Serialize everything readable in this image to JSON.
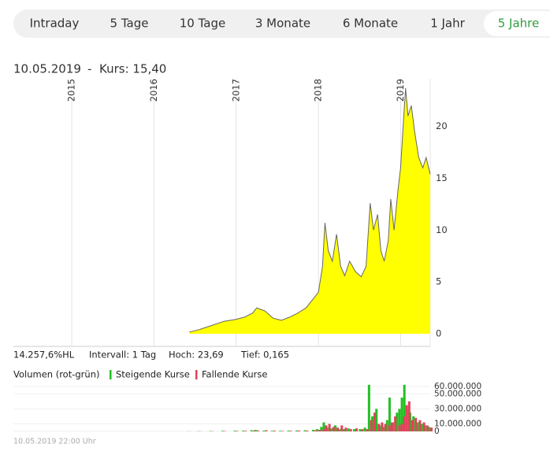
{
  "tabs": [
    "Intraday",
    "5 Tage",
    "10 Tage",
    "3 Monate",
    "6 Monate",
    "1 Jahr",
    "5 Jahre"
  ],
  "active_tab": 6,
  "header": {
    "date": "10.05.2019",
    "separator": "-",
    "price": "Kurs: 15,40"
  },
  "stats": [
    "14.257,6%HL",
    "Intervall: 1 Tag",
    "Hoch: 23,69",
    "Tief: 0,165"
  ],
  "volume_title": "Volumen (rot-grün)",
  "footer": "10.05.2019 22:00 Uhr",
  "chart_data": [
    {
      "type": "area",
      "color": "#ffff00",
      "line_color": "#666666",
      "x": [
        2016.43,
        2016.55,
        2016.7,
        2016.85,
        2017.0,
        2017.1,
        2017.2,
        2017.25,
        2017.35,
        2017.45,
        2017.55,
        2017.65,
        2017.75,
        2017.85,
        2017.95,
        2018.0,
        2018.05,
        2018.08,
        2018.12,
        2018.17,
        2018.22,
        2018.27,
        2018.32,
        2018.38,
        2018.45,
        2018.52,
        2018.58,
        2018.63,
        2018.67,
        2018.72,
        2018.76,
        2018.8,
        2018.85,
        2018.88,
        2018.92,
        2018.97,
        2019.0,
        2019.03,
        2019.06,
        2019.09,
        2019.13,
        2019.17,
        2019.22,
        2019.27,
        2019.31,
        2019.36
      ],
      "values": [
        0.17,
        0.4,
        0.8,
        1.2,
        1.4,
        1.6,
        2.0,
        2.5,
        2.2,
        1.5,
        1.3,
        1.6,
        2.0,
        2.5,
        3.5,
        4.0,
        6.5,
        10.7,
        8.0,
        7.0,
        9.6,
        6.5,
        5.6,
        7.0,
        6.0,
        5.5,
        6.5,
        12.6,
        10.0,
        11.5,
        8.0,
        7.0,
        9.0,
        13.0,
        10.0,
        14.0,
        16.0,
        20.0,
        23.69,
        21.0,
        22.0,
        19.5,
        17.0,
        16.0,
        17.0,
        15.4
      ],
      "xlim": [
        2014.29,
        2019.36
      ],
      "xticks": [
        2015,
        2016,
        2017,
        2018,
        2019
      ],
      "ylim": [
        0,
        24.6
      ],
      "yticks": [
        0,
        5,
        10,
        15,
        20
      ],
      "grid": true
    },
    {
      "type": "bar",
      "x": [
        2016.43,
        2016.55,
        2016.7,
        2016.85,
        2017.0,
        2017.1,
        2017.2,
        2017.25,
        2017.35,
        2017.45,
        2017.55,
        2017.65,
        2017.75,
        2017.85,
        2017.95,
        2018.0,
        2018.05,
        2018.08,
        2018.12,
        2018.17,
        2018.22,
        2018.27,
        2018.32,
        2018.38,
        2018.45,
        2018.52,
        2018.58,
        2018.63,
        2018.67,
        2018.72,
        2018.76,
        2018.8,
        2018.85,
        2018.88,
        2018.92,
        2018.97,
        2019.0,
        2019.03,
        2019.06,
        2019.09,
        2019.13,
        2019.17,
        2019.22,
        2019.27,
        2019.31,
        2019.36
      ],
      "series": [
        {
          "name": "Steigende Kurse",
          "color": "#22c022",
          "values": [
            200000,
            300000,
            500000,
            800000,
            1000000,
            1000000,
            1500000,
            2000000,
            1000000,
            800000,
            800000,
            1000000,
            1200000,
            1500000,
            2000000,
            3000000,
            6000000,
            12000000,
            5000000,
            4000000,
            8000000,
            3000000,
            3000000,
            4000000,
            3000000,
            3000000,
            5000000,
            62000000,
            20000000,
            30000000,
            8000000,
            6000000,
            15000000,
            45000000,
            12000000,
            25000000,
            30000000,
            45000000,
            62000000,
            30000000,
            25000000,
            20000000,
            12000000,
            10000000,
            8000000,
            6000000
          ]
        },
        {
          "name": "Fallende Kurse",
          "color": "#e0435a",
          "values": [
            100000,
            200000,
            300000,
            500000,
            600000,
            800000,
            1000000,
            1200000,
            1500000,
            1000000,
            600000,
            800000,
            1000000,
            1000000,
            1500000,
            2000000,
            3000000,
            8000000,
            10000000,
            6000000,
            5000000,
            8000000,
            5000000,
            3000000,
            4000000,
            3000000,
            3000000,
            15000000,
            25000000,
            10000000,
            12000000,
            10000000,
            8000000,
            12000000,
            20000000,
            8000000,
            10000000,
            20000000,
            35000000,
            40000000,
            15000000,
            18000000,
            15000000,
            12000000,
            8000000,
            5000000
          ]
        }
      ],
      "xlim": [
        2014.29,
        2019.36
      ],
      "ylim": [
        0,
        65000000
      ],
      "yticks": [
        0,
        {
          "value": 10000000,
          "label": "10.000.000"
        },
        {
          "value": 30000000,
          "label": "30.000.000"
        },
        {
          "value": 50000000,
          "label": "50.000.000"
        },
        {
          "value": 60000000,
          "label": "60.000.000"
        }
      ]
    }
  ]
}
